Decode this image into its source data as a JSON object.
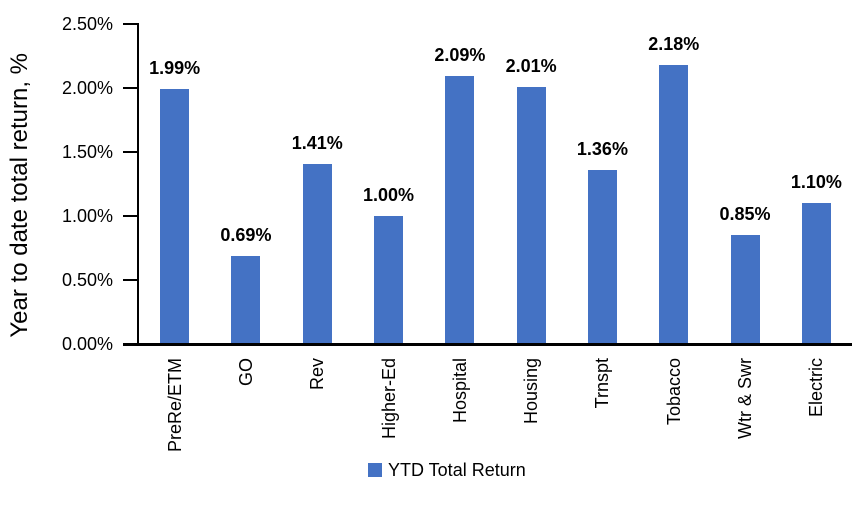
{
  "chart_data": {
    "type": "bar",
    "title": "",
    "ylabel": "Year to date total return, %",
    "xlabel": "",
    "ylim": [
      0,
      2.5
    ],
    "ytick_step": 0.5,
    "grid": false,
    "legend_label": "YTD Total Return",
    "legend_position": "bottom-center",
    "bar_color": "#4472C4",
    "categories": [
      "PreRe/ETM",
      "GO",
      "Rev",
      "Higher-Ed",
      "Hospital",
      "Housing",
      "Trnspt",
      "Tobacco",
      "Wtr & Swr",
      "Electric"
    ],
    "values": [
      1.99,
      0.69,
      1.41,
      1.0,
      2.09,
      2.01,
      1.36,
      2.18,
      0.85,
      1.1
    ],
    "data_labels": [
      "1.99%",
      "0.69%",
      "1.41%",
      "1.00%",
      "2.09%",
      "2.01%",
      "1.36%",
      "2.18%",
      "0.85%",
      "1.10%"
    ],
    "ytick_labels": [
      "0.00%",
      "0.50%",
      "1.00%",
      "1.50%",
      "2.00%",
      "2.50%"
    ]
  }
}
